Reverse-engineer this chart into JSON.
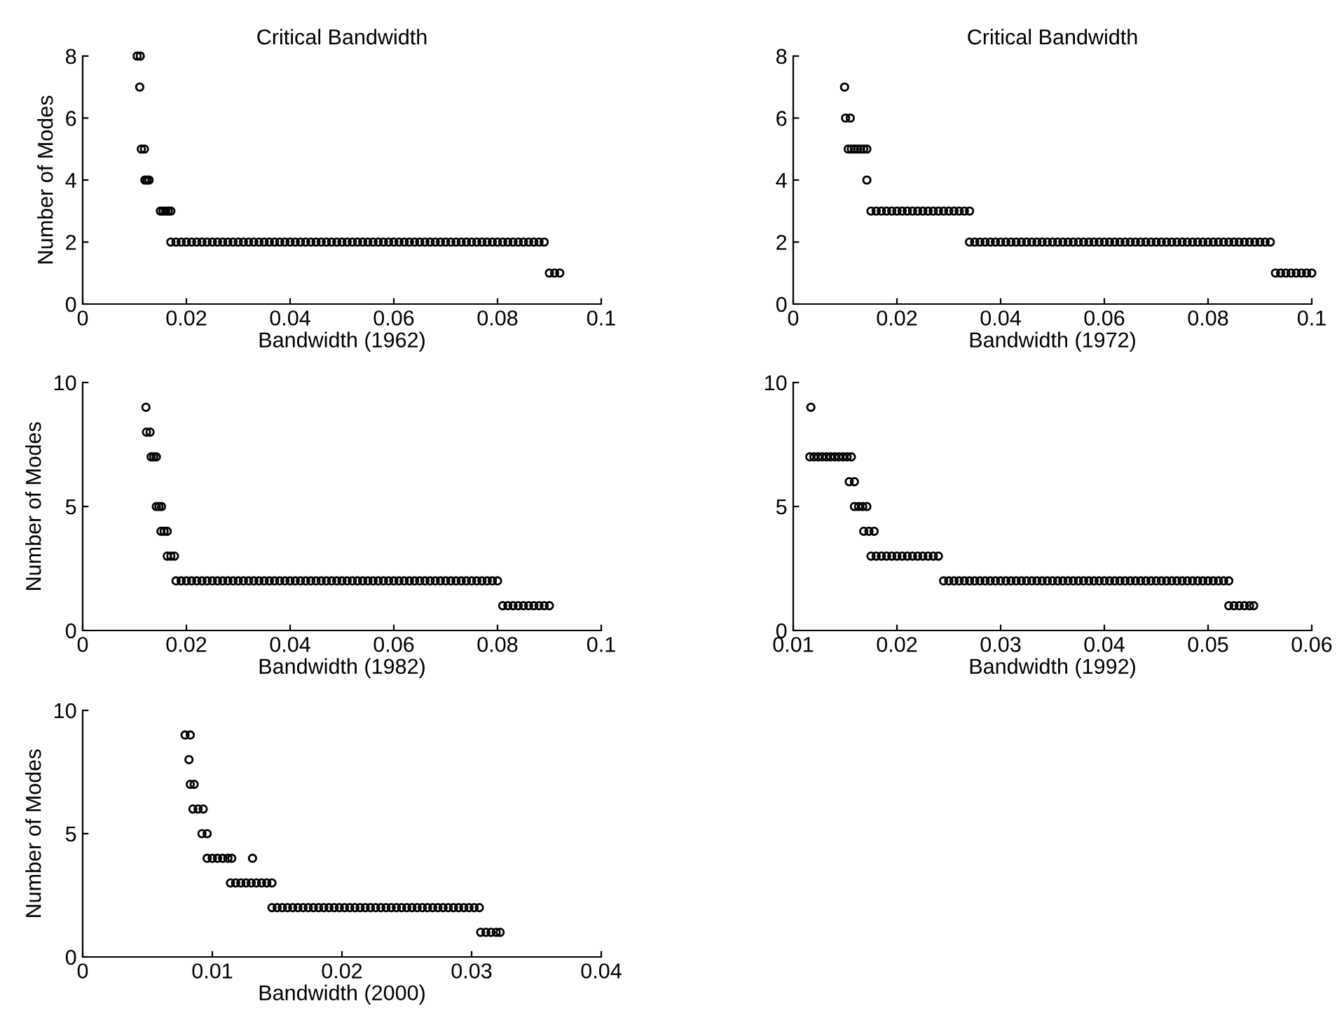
{
  "chart_data": [
    {
      "type": "scatter",
      "title": "Critical Bandwidth",
      "xlabel": "Bandwidth (1962)",
      "ylabel": "Number of Modes",
      "marker": "circle",
      "color": "#000000",
      "xlim": [
        0,
        0.1
      ],
      "ylim": [
        0,
        8
      ],
      "xticks": [
        0,
        0.02,
        0.04,
        0.06,
        0.08,
        0.1
      ],
      "yticks": [
        0,
        2,
        4,
        6,
        8
      ],
      "x": [
        0.0105,
        0.0111,
        0.011,
        0.0113,
        0.0119,
        0.012,
        0.0124,
        0.0128,
        0.015,
        0.0155,
        0.016,
        0.0165,
        0.017,
        0.017,
        0.018,
        0.019,
        0.02,
        0.021,
        0.022,
        0.023,
        0.024,
        0.025,
        0.026,
        0.027,
        0.028,
        0.029,
        0.03,
        0.031,
        0.032,
        0.033,
        0.034,
        0.035,
        0.036,
        0.037,
        0.038,
        0.039,
        0.04,
        0.041,
        0.042,
        0.043,
        0.044,
        0.045,
        0.046,
        0.047,
        0.048,
        0.049,
        0.05,
        0.051,
        0.052,
        0.053,
        0.054,
        0.055,
        0.056,
        0.057,
        0.058,
        0.059,
        0.06,
        0.061,
        0.062,
        0.063,
        0.064,
        0.065,
        0.066,
        0.067,
        0.068,
        0.069,
        0.07,
        0.071,
        0.072,
        0.073,
        0.074,
        0.075,
        0.076,
        0.077,
        0.078,
        0.079,
        0.08,
        0.081,
        0.082,
        0.083,
        0.084,
        0.085,
        0.086,
        0.087,
        0.088,
        0.089,
        0.09,
        0.091,
        0.092
      ],
      "values": [
        8,
        8,
        7,
        5,
        5,
        4,
        4,
        4,
        3,
        3,
        3,
        3,
        3,
        2,
        2,
        2,
        2,
        2,
        2,
        2,
        2,
        2,
        2,
        2,
        2,
        2,
        2,
        2,
        2,
        2,
        2,
        2,
        2,
        2,
        2,
        2,
        2,
        2,
        2,
        2,
        2,
        2,
        2,
        2,
        2,
        2,
        2,
        2,
        2,
        2,
        2,
        2,
        2,
        2,
        2,
        2,
        2,
        2,
        2,
        2,
        2,
        2,
        2,
        2,
        2,
        2,
        2,
        2,
        2,
        2,
        2,
        2,
        2,
        2,
        2,
        2,
        2,
        2,
        2,
        2,
        2,
        2,
        2,
        2,
        2,
        2,
        1,
        1,
        1
      ]
    },
    {
      "type": "scatter",
      "title": "Critical Bandwidth",
      "xlabel": "Bandwidth (1972)",
      "marker": "circle",
      "color": "#000000",
      "xlim": [
        0,
        0.1
      ],
      "ylim": [
        0,
        8
      ],
      "xticks": [
        0,
        0.02,
        0.04,
        0.06,
        0.08,
        0.1
      ],
      "yticks": [
        0,
        2,
        4,
        6,
        8
      ],
      "x": [
        0.0099,
        0.0101,
        0.011,
        0.0106,
        0.0112,
        0.0118,
        0.0124,
        0.013,
        0.0136,
        0.0142,
        0.0142,
        0.015,
        0.016,
        0.017,
        0.018,
        0.019,
        0.02,
        0.021,
        0.022,
        0.023,
        0.024,
        0.025,
        0.026,
        0.027,
        0.028,
        0.029,
        0.03,
        0.031,
        0.032,
        0.033,
        0.034,
        0.034,
        0.035,
        0.036,
        0.037,
        0.038,
        0.039,
        0.04,
        0.041,
        0.042,
        0.043,
        0.044,
        0.045,
        0.046,
        0.047,
        0.048,
        0.049,
        0.05,
        0.051,
        0.052,
        0.053,
        0.054,
        0.055,
        0.056,
        0.057,
        0.058,
        0.059,
        0.06,
        0.061,
        0.062,
        0.063,
        0.064,
        0.065,
        0.066,
        0.067,
        0.068,
        0.069,
        0.07,
        0.071,
        0.072,
        0.073,
        0.074,
        0.075,
        0.076,
        0.077,
        0.078,
        0.079,
        0.08,
        0.081,
        0.082,
        0.083,
        0.084,
        0.085,
        0.086,
        0.087,
        0.088,
        0.089,
        0.09,
        0.091,
        0.092,
        0.093,
        0.094,
        0.095,
        0.096,
        0.097,
        0.098,
        0.099,
        0.1
      ],
      "values": [
        7,
        6,
        6,
        5,
        5,
        5,
        5,
        5,
        5,
        5,
        4,
        3,
        3,
        3,
        3,
        3,
        3,
        3,
        3,
        3,
        3,
        3,
        3,
        3,
        3,
        3,
        3,
        3,
        3,
        3,
        3,
        2,
        2,
        2,
        2,
        2,
        2,
        2,
        2,
        2,
        2,
        2,
        2,
        2,
        2,
        2,
        2,
        2,
        2,
        2,
        2,
        2,
        2,
        2,
        2,
        2,
        2,
        2,
        2,
        2,
        2,
        2,
        2,
        2,
        2,
        2,
        2,
        2,
        2,
        2,
        2,
        2,
        2,
        2,
        2,
        2,
        2,
        2,
        2,
        2,
        2,
        2,
        2,
        2,
        2,
        2,
        2,
        2,
        2,
        2,
        1,
        1,
        1,
        1,
        1,
        1,
        1,
        1
      ]
    },
    {
      "type": "scatter",
      "xlabel": "Bandwidth (1982)",
      "ylabel": "Number of Modes",
      "marker": "circle",
      "color": "#000000",
      "xlim": [
        0,
        0.1
      ],
      "ylim": [
        0,
        10
      ],
      "xticks": [
        0,
        0.02,
        0.04,
        0.06,
        0.08,
        0.1
      ],
      "yticks": [
        0,
        5,
        10
      ],
      "x": [
        0.0122,
        0.0123,
        0.013,
        0.0132,
        0.0137,
        0.0142,
        0.0142,
        0.0147,
        0.0152,
        0.0151,
        0.0157,
        0.0163,
        0.0163,
        0.017,
        0.0177,
        0.018,
        0.019,
        0.02,
        0.021,
        0.022,
        0.023,
        0.024,
        0.025,
        0.026,
        0.027,
        0.028,
        0.029,
        0.03,
        0.031,
        0.032,
        0.033,
        0.034,
        0.035,
        0.036,
        0.037,
        0.038,
        0.039,
        0.04,
        0.041,
        0.042,
        0.043,
        0.044,
        0.045,
        0.046,
        0.047,
        0.048,
        0.049,
        0.05,
        0.051,
        0.052,
        0.053,
        0.054,
        0.055,
        0.056,
        0.057,
        0.058,
        0.059,
        0.06,
        0.061,
        0.062,
        0.063,
        0.064,
        0.065,
        0.066,
        0.067,
        0.068,
        0.069,
        0.07,
        0.071,
        0.072,
        0.073,
        0.074,
        0.075,
        0.076,
        0.077,
        0.078,
        0.079,
        0.08,
        0.081,
        0.082,
        0.083,
        0.084,
        0.085,
        0.086,
        0.087,
        0.088,
        0.089,
        0.09
      ],
      "values": [
        9,
        8,
        8,
        7,
        7,
        7,
        5,
        5,
        5,
        4,
        4,
        4,
        3,
        3,
        3,
        2,
        2,
        2,
        2,
        2,
        2,
        2,
        2,
        2,
        2,
        2,
        2,
        2,
        2,
        2,
        2,
        2,
        2,
        2,
        2,
        2,
        2,
        2,
        2,
        2,
        2,
        2,
        2,
        2,
        2,
        2,
        2,
        2,
        2,
        2,
        2,
        2,
        2,
        2,
        2,
        2,
        2,
        2,
        2,
        2,
        2,
        2,
        2,
        2,
        2,
        2,
        2,
        2,
        2,
        2,
        2,
        2,
        2,
        2,
        2,
        2,
        2,
        2,
        1,
        1,
        1,
        1,
        1,
        1,
        1,
        1,
        1,
        1
      ]
    },
    {
      "type": "scatter",
      "xlabel": "Bandwidth (1992)",
      "marker": "circle",
      "color": "#000000",
      "xlim": [
        0.01,
        0.06
      ],
      "ylim": [
        0,
        10
      ],
      "xticks": [
        0.01,
        0.02,
        0.03,
        0.04,
        0.05,
        0.06
      ],
      "yticks": [
        0,
        5,
        10
      ],
      "x": [
        0.0117,
        0.0116,
        0.012,
        0.0124,
        0.0128,
        0.0132,
        0.0136,
        0.014,
        0.0144,
        0.0148,
        0.0152,
        0.0156,
        0.0154,
        0.0159,
        0.0159,
        0.0163,
        0.0167,
        0.0171,
        0.0168,
        0.0173,
        0.0178,
        0.0175,
        0.018,
        0.0185,
        0.019,
        0.0195,
        0.02,
        0.0205,
        0.021,
        0.0215,
        0.022,
        0.0225,
        0.023,
        0.0235,
        0.024,
        0.0245,
        0.025,
        0.0255,
        0.026,
        0.0265,
        0.027,
        0.0275,
        0.028,
        0.0285,
        0.029,
        0.0295,
        0.03,
        0.0305,
        0.031,
        0.0315,
        0.032,
        0.0325,
        0.033,
        0.0335,
        0.034,
        0.0345,
        0.035,
        0.0355,
        0.036,
        0.0365,
        0.037,
        0.0375,
        0.038,
        0.0385,
        0.039,
        0.0395,
        0.04,
        0.0405,
        0.041,
        0.0415,
        0.042,
        0.0425,
        0.043,
        0.0435,
        0.044,
        0.0445,
        0.045,
        0.0455,
        0.046,
        0.0465,
        0.047,
        0.0475,
        0.048,
        0.0485,
        0.049,
        0.0495,
        0.05,
        0.0505,
        0.051,
        0.0515,
        0.052,
        0.052,
        0.0525,
        0.053,
        0.0535,
        0.054,
        0.0544
      ],
      "values": [
        9,
        7,
        7,
        7,
        7,
        7,
        7,
        7,
        7,
        7,
        7,
        7,
        6,
        6,
        5,
        5,
        5,
        5,
        4,
        4,
        4,
        3,
        3,
        3,
        3,
        3,
        3,
        3,
        3,
        3,
        3,
        3,
        3,
        3,
        3,
        2,
        2,
        2,
        2,
        2,
        2,
        2,
        2,
        2,
        2,
        2,
        2,
        2,
        2,
        2,
        2,
        2,
        2,
        2,
        2,
        2,
        2,
        2,
        2,
        2,
        2,
        2,
        2,
        2,
        2,
        2,
        2,
        2,
        2,
        2,
        2,
        2,
        2,
        2,
        2,
        2,
        2,
        2,
        2,
        2,
        2,
        2,
        2,
        2,
        2,
        2,
        2,
        2,
        2,
        2,
        2,
        1,
        1,
        1,
        1,
        1,
        1
      ]
    },
    {
      "type": "scatter",
      "xlabel": "Bandwidth (2000)",
      "ylabel": "Number of Modes",
      "marker": "circle",
      "color": "#000000",
      "xlim": [
        0,
        0.04
      ],
      "ylim": [
        0,
        10
      ],
      "xticks": [
        0,
        0.01,
        0.02,
        0.03,
        0.04
      ],
      "yticks": [
        0,
        5,
        10
      ],
      "x": [
        0.0079,
        0.0083,
        0.0082,
        0.0083,
        0.0086,
        0.0085,
        0.0089,
        0.0093,
        0.0092,
        0.0096,
        0.0096,
        0.01,
        0.0104,
        0.0108,
        0.0112,
        0.0115,
        0.0131,
        0.0114,
        0.0118,
        0.0122,
        0.0126,
        0.013,
        0.0134,
        0.0138,
        0.0142,
        0.0146,
        0.0146,
        0.015,
        0.0154,
        0.0158,
        0.0162,
        0.0166,
        0.017,
        0.0174,
        0.0178,
        0.0182,
        0.0186,
        0.019,
        0.0194,
        0.0198,
        0.0202,
        0.0206,
        0.021,
        0.0214,
        0.0218,
        0.0222,
        0.0226,
        0.023,
        0.0234,
        0.0238,
        0.0242,
        0.0246,
        0.025,
        0.0254,
        0.0258,
        0.0262,
        0.0266,
        0.027,
        0.0274,
        0.0278,
        0.0282,
        0.0286,
        0.029,
        0.0294,
        0.0298,
        0.0302,
        0.0306,
        0.0307,
        0.0311,
        0.0315,
        0.0319,
        0.0322
      ],
      "values": [
        9,
        9,
        8,
        7,
        7,
        6,
        6,
        6,
        5,
        5,
        4,
        4,
        4,
        4,
        4,
        4,
        4,
        3,
        3,
        3,
        3,
        3,
        3,
        3,
        3,
        3,
        2,
        2,
        2,
        2,
        2,
        2,
        2,
        2,
        2,
        2,
        2,
        2,
        2,
        2,
        2,
        2,
        2,
        2,
        2,
        2,
        2,
        2,
        2,
        2,
        2,
        2,
        2,
        2,
        2,
        2,
        2,
        2,
        2,
        2,
        2,
        2,
        2,
        2,
        2,
        2,
        2,
        1,
        1,
        1,
        1,
        1
      ]
    }
  ]
}
